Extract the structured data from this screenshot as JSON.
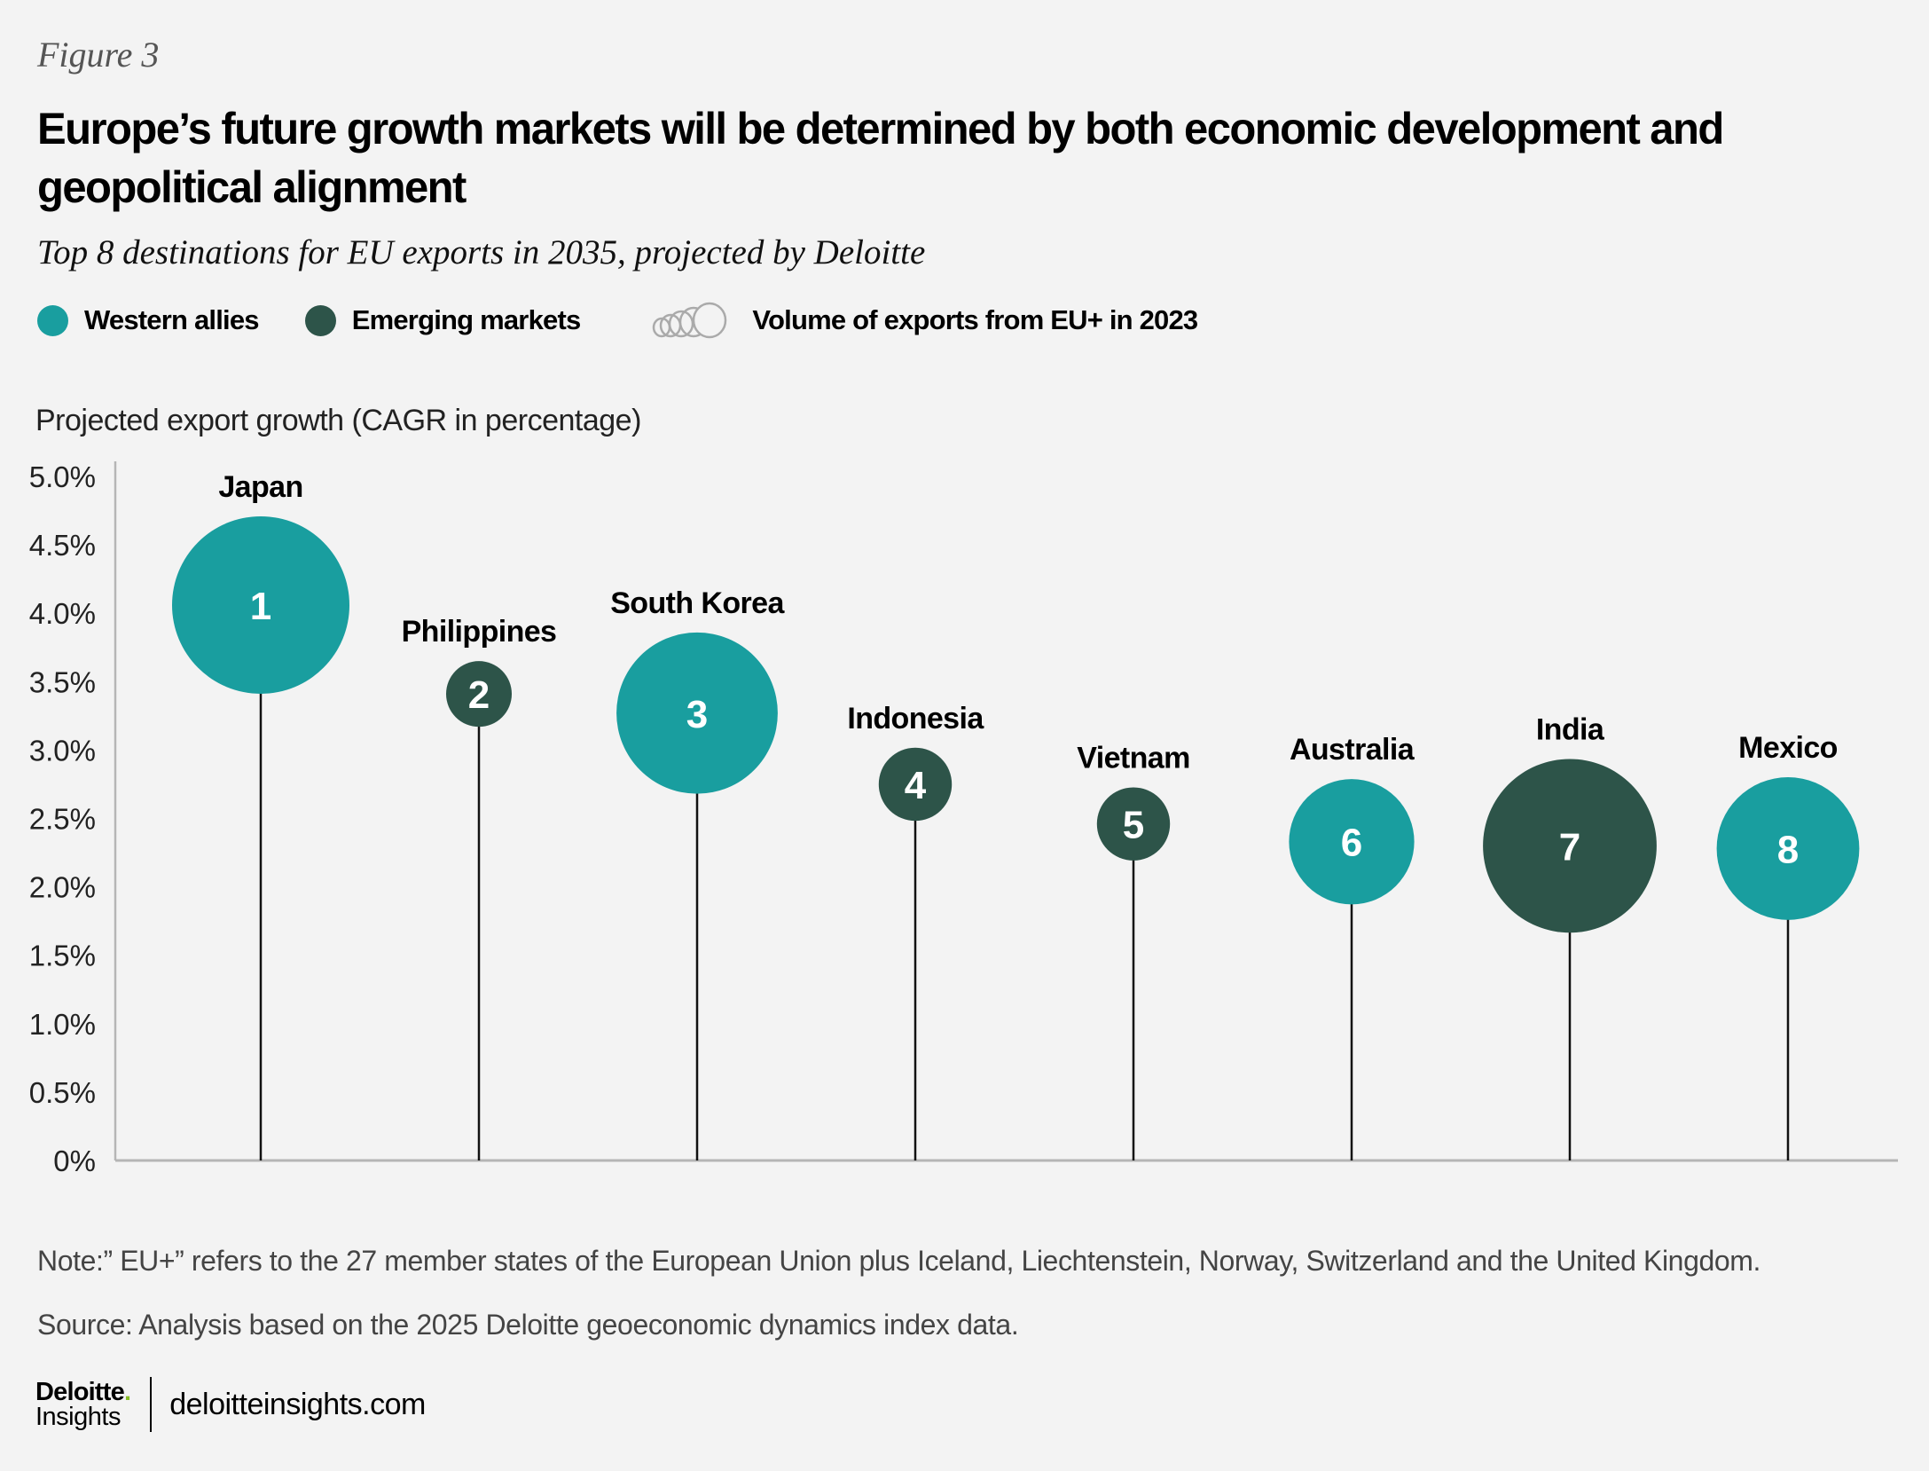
{
  "header": {
    "figure_label": "Figure 3",
    "title": "Europe’s future growth markets will be determined by both economic development and geopolitical alignment",
    "subtitle": "Top 8 destinations for EU exports in 2035, projected by Deloitte"
  },
  "legend": {
    "items": [
      {
        "label": "Western allies",
        "color": "#199e9f"
      },
      {
        "label": "Emerging markets",
        "color": "#2d5449"
      }
    ],
    "volume_label": "Volume of exports from EU+ in 2023"
  },
  "colors": {
    "western_allies": "#199e9f",
    "emerging_markets": "#2d5449",
    "background": "#f3f3f3",
    "stem": "#111111",
    "axis": "#b5b5b5"
  },
  "chart_data": {
    "type": "scatter",
    "subtype": "lollipop-bubble",
    "title": "Top 8 destinations for EU exports in 2035, projected by Deloitte",
    "xlabel": "",
    "ylabel": "Projected export growth (CAGR in percentage)",
    "ylim": [
      0,
      5.0
    ],
    "yticks": [
      0,
      0.5,
      1.0,
      1.5,
      2.0,
      2.5,
      3.0,
      3.5,
      4.0,
      4.5,
      5.0
    ],
    "ytick_labels": [
      "0%",
      "0.5%",
      "1.0%",
      "1.5%",
      "2.0%",
      "2.5%",
      "3.0%",
      "3.5%",
      "4.0%",
      "4.5%",
      "5.0%"
    ],
    "grid": false,
    "legend_position": "top-left",
    "size_encodes": "Volume of exports from EU+ in 2023 (relative)",
    "points": [
      {
        "rank": "1",
        "country": "Japan",
        "group": "Western allies",
        "cagr": 4.06,
        "relative_volume": 1.0
      },
      {
        "rank": "2",
        "country": "Philippines",
        "group": "Emerging markets",
        "cagr": 3.41,
        "relative_volume": 0.1
      },
      {
        "rank": "3",
        "country": "South Korea",
        "group": "Western allies",
        "cagr": 3.27,
        "relative_volume": 0.87
      },
      {
        "rank": "4",
        "country": "Indonesia",
        "group": "Emerging markets",
        "cagr": 2.75,
        "relative_volume": 0.16
      },
      {
        "rank": "5",
        "country": "Vietnam",
        "group": "Emerging markets",
        "cagr": 2.46,
        "relative_volume": 0.16
      },
      {
        "rank": "6",
        "country": "Australia",
        "group": "Western allies",
        "cagr": 2.33,
        "relative_volume": 0.58
      },
      {
        "rank": "7",
        "country": "India",
        "group": "Emerging markets",
        "cagr": 2.3,
        "relative_volume": 0.97
      },
      {
        "rank": "8",
        "country": "Mexico",
        "group": "Western allies",
        "cagr": 2.28,
        "relative_volume": 0.72
      }
    ]
  },
  "footnotes": {
    "note": "Note:” EU+” refers to the 27 member states of the European Union plus Iceland, Liechtenstein, Norway, Switzerland and the United Kingdom.",
    "source": "Source: Analysis based on the 2025 Deloitte geoeconomic dynamics index data."
  },
  "footer": {
    "brand": "Deloitte",
    "brand_dot": ".",
    "brand_sub": "Insights",
    "url": "deloitteinsights.com"
  }
}
